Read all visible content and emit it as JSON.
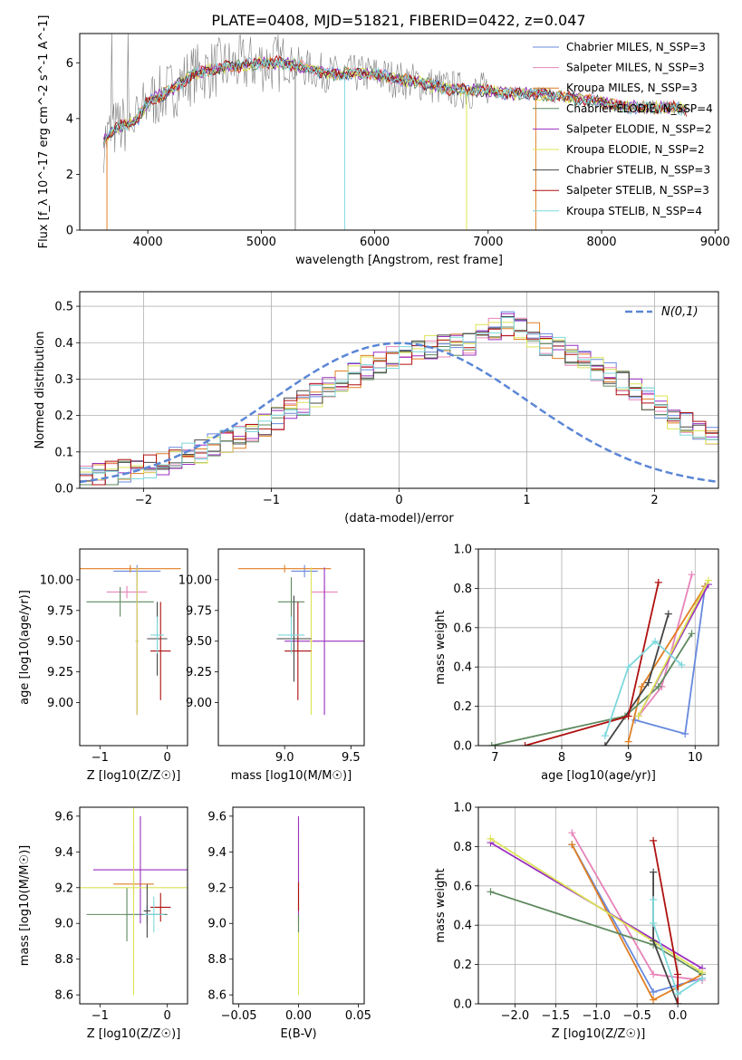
{
  "figure": {
    "title": "PLATE=0408, MJD=51821, FIBERID=0422, z=0.047"
  },
  "chart_data": [
    {
      "id": "spectrum",
      "type": "line",
      "xlabel": "wavelength [Angstrom, rest frame]",
      "ylabel": "Flux [f_λ 10^-17 erg cm^-2 s^-1 A^-1]",
      "xlim": [
        3400,
        9030
      ],
      "ylim": [
        0,
        7.05
      ],
      "xticks": [
        4000,
        5000,
        6000,
        7000,
        8000,
        9000
      ],
      "yticks": [
        0,
        2,
        4,
        6
      ],
      "grid": false,
      "legend_position": "right",
      "data_series": {
        "name": "",
        "color": "#808080",
        "anchor_x": [
          3600,
          3700,
          3800,
          3900,
          4000,
          4200,
          4400,
          4600,
          4800,
          5000,
          5200,
          5400,
          5600,
          5800,
          6000,
          6200,
          6400,
          6600,
          6800,
          7000,
          7200,
          7400,
          7600,
          7800,
          8000,
          8200,
          8400,
          8600,
          8800
        ],
        "anchor_y": [
          3.1,
          3.6,
          3.8,
          3.9,
          4.6,
          5.0,
          5.6,
          5.8,
          5.9,
          6.0,
          6.0,
          5.8,
          5.6,
          5.6,
          5.6,
          5.4,
          5.3,
          5.1,
          5.0,
          5.0,
          4.9,
          4.9,
          4.8,
          4.7,
          4.6,
          4.4,
          4.4,
          4.4,
          4.3
        ]
      },
      "model_series": [
        {
          "name": "Chabrier MILES, N_SSP=3",
          "color": "#6688dd"
        },
        {
          "name": "Salpeter MILES, N_SSP=3",
          "color": "#e783b9"
        },
        {
          "name": "Kroupa MILES, N_SSP=3",
          "color": "#e17f22"
        },
        {
          "name": "Chabrier ELODIE, N_SSP=4",
          "color": "#5f8a5f"
        },
        {
          "name": "Salpeter ELODIE, N_SSP=2",
          "color": "#9a2fc0"
        },
        {
          "name": "Kroupa ELODIE, N_SSP=2",
          "color": "#dce455"
        },
        {
          "name": "Chabrier STELIB, N_SSP=3",
          "color": "#444444"
        },
        {
          "name": "Salpeter STELIB, N_SSP=3",
          "color": "#b01010"
        },
        {
          "name": "Kroupa STELIB, N_SSP=4",
          "color": "#7dd8dc"
        }
      ]
    },
    {
      "id": "residuals",
      "type": "step",
      "xlabel": "(data-model)/error",
      "ylabel": "Normed distribution",
      "xlim": [
        -2.5,
        2.5
      ],
      "ylim": [
        0,
        0.54
      ],
      "xticks": [
        -2,
        -1,
        0,
        1,
        2
      ],
      "yticks": [
        0.0,
        0.1,
        0.2,
        0.3,
        0.4,
        0.5
      ],
      "grid": true,
      "legend_position": "top-right",
      "reference": {
        "name": "N(0,1)",
        "color": "#5b86d6"
      },
      "bin_width": 0.1,
      "bin_start": -2.5,
      "base_envelope": [
        0.03,
        0.035,
        0.04,
        0.045,
        0.05,
        0.06,
        0.07,
        0.08,
        0.09,
        0.1,
        0.115,
        0.13,
        0.145,
        0.16,
        0.175,
        0.195,
        0.215,
        0.235,
        0.255,
        0.275,
        0.29,
        0.31,
        0.33,
        0.345,
        0.36,
        0.37,
        0.385,
        0.39,
        0.395,
        0.4,
        0.4,
        0.42,
        0.44,
        0.45,
        0.44,
        0.42,
        0.4,
        0.385,
        0.37,
        0.35,
        0.33,
        0.31,
        0.29,
        0.27,
        0.245,
        0.22,
        0.195,
        0.175,
        0.15,
        0.135,
        0.115
      ]
    },
    {
      "id": "age_vs_Z",
      "type": "errorbar",
      "xlabel": "Z [log10(Z/Z☉)]",
      "ylabel": "age [log10(age/yr)]",
      "xlim": [
        -1.3,
        0.3
      ],
      "ylim": [
        8.65,
        10.25
      ],
      "xticks": [
        -1,
        0
      ],
      "yticks": [
        9.0,
        9.25,
        9.5,
        9.75,
        10.0
      ],
      "points": [
        {
          "color": "#6688dd",
          "x": -0.45,
          "xerr": 0.35,
          "y": 10.07,
          "yerr": 0.05
        },
        {
          "color": "#e783b9",
          "x": -0.6,
          "xerr": 0.3,
          "y": 9.9,
          "yerr": 0.05
        },
        {
          "color": "#e17f22",
          "x": -0.55,
          "xerr": 0.75,
          "y": 10.09,
          "yerr": 0.03
        },
        {
          "color": "#5f8a5f",
          "x": -0.7,
          "xerr": 0.5,
          "y": 9.82,
          "yerr": 0.12
        },
        {
          "color": "#9a2fc0",
          "x": -0.45,
          "xerr": 0.02,
          "y": 9.5,
          "yerr": 0.6
        },
        {
          "color": "#dce455",
          "x": -0.45,
          "xerr": 0.02,
          "y": 9.5,
          "yerr": 0.6
        },
        {
          "color": "#444444",
          "x": -0.15,
          "xerr": 0.15,
          "y": 9.52,
          "yerr": 0.3
        },
        {
          "color": "#b01010",
          "x": -0.1,
          "xerr": 0.15,
          "y": 9.42,
          "yerr": 0.4
        },
        {
          "color": "#7dd8dc",
          "x": -0.15,
          "xerr": 0.1,
          "y": 9.55,
          "yerr": 0.15
        }
      ]
    },
    {
      "id": "age_vs_mass",
      "type": "errorbar",
      "xlabel": "mass [log10(M/M☉)]",
      "ylabel": "",
      "xlim": [
        8.5,
        9.6
      ],
      "ylim": [
        8.65,
        10.25
      ],
      "xticks": [
        9.0,
        9.5
      ],
      "yticks": [
        9.0,
        9.25,
        9.5,
        9.75,
        10.0
      ],
      "points": [
        {
          "color": "#6688dd",
          "x": 9.15,
          "xerr": 0.1,
          "y": 10.07,
          "yerr": 0.05
        },
        {
          "color": "#e783b9",
          "x": 9.3,
          "xerr": 0.1,
          "y": 9.9,
          "yerr": 0.05
        },
        {
          "color": "#e17f22",
          "x": 9.0,
          "xerr": 0.35,
          "y": 10.09,
          "yerr": 0.03
        },
        {
          "color": "#5f8a5f",
          "x": 9.05,
          "xerr": 0.1,
          "y": 9.82,
          "yerr": 0.2
        },
        {
          "color": "#9a2fc0",
          "x": 9.3,
          "xerr": 0.3,
          "y": 9.5,
          "yerr": 0.6
        },
        {
          "color": "#dce455",
          "x": 9.2,
          "xerr": 0.01,
          "y": 9.5,
          "yerr": 0.6
        },
        {
          "color": "#444444",
          "x": 9.07,
          "xerr": 0.13,
          "y": 9.52,
          "yerr": 0.35
        },
        {
          "color": "#b01010",
          "x": 9.1,
          "xerr": 0.1,
          "y": 9.42,
          "yerr": 0.4
        },
        {
          "color": "#7dd8dc",
          "x": 9.05,
          "xerr": 0.1,
          "y": 9.55,
          "yerr": 0.15
        }
      ]
    },
    {
      "id": "weight_vs_age",
      "type": "line",
      "xlabel": "age [log10(age/yr)]",
      "ylabel": "mass weight",
      "xlim": [
        6.75,
        10.35
      ],
      "ylim": [
        0,
        1
      ],
      "xticks": [
        7,
        8,
        9,
        10
      ],
      "yticks": [
        0.0,
        0.2,
        0.4,
        0.6,
        0.8,
        1.0
      ],
      "grid": true,
      "series": [
        {
          "color": "#6688dd",
          "x": [
            10.15,
            9.85,
            9.1
          ],
          "y": [
            0.81,
            0.06,
            0.13
          ]
        },
        {
          "color": "#e783b9",
          "x": [
            9.15,
            9.5,
            9.95
          ],
          "y": [
            0.15,
            0.3,
            0.87
          ]
        },
        {
          "color": "#e17f22",
          "x": [
            9.0,
            9.2,
            10.15
          ],
          "y": [
            0.02,
            0.3,
            0.81
          ]
        },
        {
          "color": "#5f8a5f",
          "x": [
            6.95,
            8.95,
            9.45,
            9.95
          ],
          "y": [
            0.0,
            0.15,
            0.3,
            0.57
          ]
        },
        {
          "color": "#9a2fc0",
          "x": [
            9.15,
            10.2
          ],
          "y": [
            0.15,
            0.82
          ]
        },
        {
          "color": "#dce455",
          "x": [
            9.15,
            10.2
          ],
          "y": [
            0.15,
            0.84
          ]
        },
        {
          "color": "#444444",
          "x": [
            8.65,
            9.3,
            9.6
          ],
          "y": [
            0.0,
            0.32,
            0.67
          ]
        },
        {
          "color": "#b01010",
          "x": [
            7.45,
            9.0,
            9.45
          ],
          "y": [
            0.0,
            0.15,
            0.83
          ]
        },
        {
          "color": "#7dd8dc",
          "x": [
            8.65,
            9.0,
            9.4,
            9.8
          ],
          "y": [
            0.05,
            0.4,
            0.53,
            0.41
          ]
        }
      ]
    },
    {
      "id": "mass_vs_Z",
      "type": "errorbar",
      "xlabel": "Z [log10(Z/Z☉)]",
      "ylabel": "mass [log10(M/M☉)]",
      "xlim": [
        -1.3,
        0.3
      ],
      "ylim": [
        8.55,
        9.65
      ],
      "xticks": [
        -1,
        0
      ],
      "yticks": [
        8.6,
        8.8,
        9.0,
        9.2,
        9.4,
        9.6
      ],
      "points": [
        {
          "color": "#6688dd",
          "x": -0.3,
          "xerr": 0.3,
          "y": 9.05,
          "yerr": 0.05
        },
        {
          "color": "#e783b9",
          "x": -0.5,
          "xerr": 0.02,
          "y": 9.3,
          "yerr": 0.15
        },
        {
          "color": "#e17f22",
          "x": -0.5,
          "xerr": 0.3,
          "y": 9.22,
          "yerr": 0.05
        },
        {
          "color": "#5f8a5f",
          "x": -0.6,
          "xerr": 0.6,
          "y": 9.05,
          "yerr": 0.15
        },
        {
          "color": "#9a2fc0",
          "x": -0.4,
          "xerr": 0.7,
          "y": 9.3,
          "yerr": 0.3
        },
        {
          "color": "#dce455",
          "x": -0.5,
          "xerr": 0.8,
          "y": 9.2,
          "yerr": 0.6
        },
        {
          "color": "#444444",
          "x": -0.3,
          "xerr": 0.05,
          "y": 9.07,
          "yerr": 0.15
        },
        {
          "color": "#b01010",
          "x": -0.1,
          "xerr": 0.15,
          "y": 9.09,
          "yerr": 0.08
        },
        {
          "color": "#7dd8dc",
          "x": -0.2,
          "xerr": 0.15,
          "y": 9.05,
          "yerr": 0.1
        }
      ]
    },
    {
      "id": "mass_vs_EBV",
      "type": "errorbar",
      "xlabel": "E(B-V)",
      "ylabel": "",
      "xlim": [
        -0.055,
        0.055
      ],
      "ylim": [
        8.55,
        9.65
      ],
      "xticks": [
        -0.05,
        0.0,
        0.05
      ],
      "yticks": [
        8.6,
        8.8,
        9.0,
        9.2,
        9.4,
        9.6
      ],
      "points": [
        {
          "color": "#dce455",
          "x": 0.0,
          "xerr": 0.0,
          "y": 9.05,
          "yerr": 0.45
        },
        {
          "color": "#9a2fc0",
          "x": 0.0,
          "xerr": 0.0,
          "y": 9.3,
          "yerr": 0.3
        },
        {
          "color": "#b01010",
          "x": 0.0,
          "xerr": 0.0,
          "y": 9.15,
          "yerr": 0.08
        },
        {
          "color": "#5f8a5f",
          "x": 0.0,
          "xerr": 0.0,
          "y": 9.0,
          "yerr": 0.05
        }
      ]
    },
    {
      "id": "weight_vs_Z",
      "type": "line",
      "xlabel": "Z [log10(Z/Z☉)]",
      "ylabel": "mass weight",
      "xlim": [
        -2.45,
        0.5
      ],
      "ylim": [
        0,
        1
      ],
      "xticks": [
        -2.0,
        -1.5,
        -1.0,
        -0.5,
        0.0
      ],
      "yticks": [
        0.0,
        0.2,
        0.4,
        0.6,
        0.8,
        1.0
      ],
      "grid": true,
      "series": [
        {
          "color": "#6688dd",
          "x": [
            -1.3,
            -0.3,
            0.3
          ],
          "y": [
            0.81,
            0.06,
            0.13
          ]
        },
        {
          "color": "#e783b9",
          "x": [
            -1.3,
            -0.3,
            0.3
          ],
          "y": [
            0.87,
            0.15,
            0.12
          ]
        },
        {
          "color": "#e17f22",
          "x": [
            -1.3,
            -0.3,
            0.3
          ],
          "y": [
            0.81,
            0.02,
            0.15
          ]
        },
        {
          "color": "#5f8a5f",
          "x": [
            -2.3,
            -0.3,
            0.3
          ],
          "y": [
            0.57,
            0.3,
            0.15
          ]
        },
        {
          "color": "#9a2fc0",
          "x": [
            -2.3,
            0.3
          ],
          "y": [
            0.82,
            0.18
          ]
        },
        {
          "color": "#dce455",
          "x": [
            -2.3,
            0.3
          ],
          "y": [
            0.84,
            0.16
          ]
        },
        {
          "color": "#444444",
          "x": [
            -0.3,
            -0.3,
            0.0
          ],
          "y": [
            0.67,
            0.32,
            0.0
          ]
        },
        {
          "color": "#b01010",
          "x": [
            -0.3,
            0.0,
            0.0
          ],
          "y": [
            0.83,
            0.15,
            0.0
          ]
        },
        {
          "color": "#7dd8dc",
          "x": [
            -0.3,
            -0.3,
            0.0,
            0.3
          ],
          "y": [
            0.53,
            0.41,
            0.05,
            0.13
          ]
        }
      ]
    }
  ]
}
